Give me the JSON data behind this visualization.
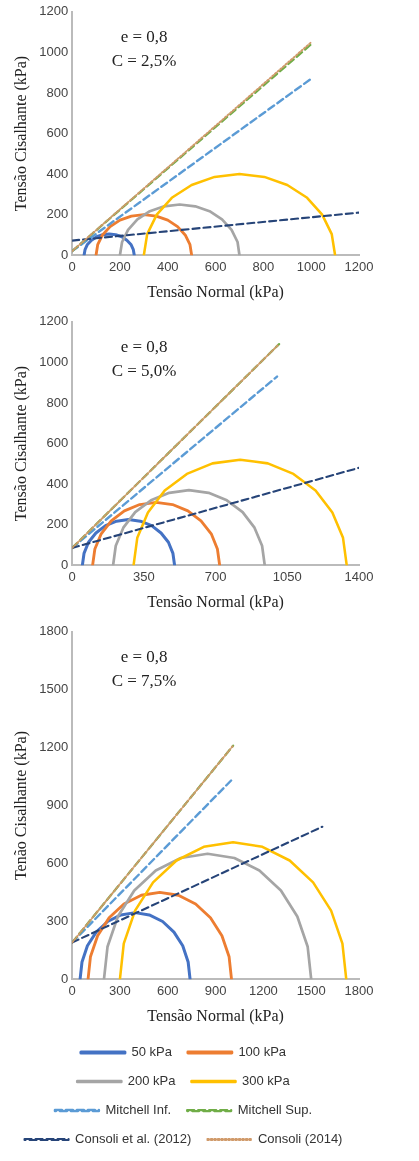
{
  "chart_data": [
    {
      "type": "line",
      "xlabel": "Tensão Normal (kPa)",
      "ylabel": "Tensão Cisalhante (kPa)",
      "annotations": [
        "e = 0,8",
        "C = 2,5%"
      ],
      "xlim": [
        0,
        1200
      ],
      "xticks": [
        0,
        200,
        400,
        600,
        800,
        1000,
        1200
      ],
      "ylim": [
        0,
        1200
      ],
      "yticks": [
        0,
        200,
        400,
        600,
        800,
        1000,
        1200
      ],
      "grid": false,
      "marker": "none",
      "series": [
        {
          "color": "#4472c4",
          "line_style": "solid",
          "x": [
            50,
            54,
            64,
            81,
            103,
            128,
            155,
            182,
            208,
            229,
            246,
            256,
            260
          ],
          "values": [
            0,
            27,
            53,
            74,
            91,
            101,
            105,
            101,
            91,
            74,
            53,
            27,
            0
          ]
        },
        {
          "color": "#ed7d31",
          "line_style": "solid",
          "x": [
            100,
            107,
            127,
            159,
            200,
            248,
            300,
            352,
            400,
            441,
            473,
            493,
            500
          ],
          "values": [
            0,
            52,
            100,
            141,
            173,
            193,
            200,
            193,
            173,
            141,
            100,
            52,
            0
          ]
        },
        {
          "color": "#a5a5a5",
          "line_style": "solid",
          "x": [
            200,
            209,
            234,
            273,
            325,
            385,
            450,
            515,
            575,
            627,
            667,
            692,
            700
          ],
          "values": [
            0,
            65,
            125,
            177,
            217,
            241,
            250,
            241,
            217,
            177,
            125,
            65,
            0
          ]
        },
        {
          "color": "#ffc000",
          "line_style": "solid",
          "x": [
            300,
            314,
            354,
            417,
            500,
            596,
            700,
            804,
            900,
            983,
            1046,
            1086,
            1100
          ],
          "values": [
            0,
            104,
            200,
            283,
            346,
            386,
            400,
            386,
            346,
            283,
            200,
            104,
            0
          ]
        },
        {
          "color": "#5b9bd5",
          "line_style": "dashed",
          "x": [
            0,
            1000
          ],
          "values": [
            20,
            870
          ]
        },
        {
          "color": "#70ad47",
          "line_style": "dashed",
          "x": [
            0,
            1000
          ],
          "values": [
            20,
            1040
          ]
        },
        {
          "color": "#264478",
          "line_style": "dashed",
          "x": [
            0,
            1200
          ],
          "values": [
            72,
            210
          ]
        },
        {
          "color": "#d09a6a",
          "line_style": "dotted",
          "x": [
            0,
            1000
          ],
          "values": [
            20,
            1050
          ]
        }
      ]
    },
    {
      "type": "line",
      "xlabel": "Tensão Normal (kPa)",
      "ylabel": "Tensão Cisalhante (kPa)",
      "annotations": [
        "e = 0,8",
        "C = 5,0%"
      ],
      "xlim": [
        0,
        1400
      ],
      "xticks": [
        0,
        350,
        700,
        1050,
        1400
      ],
      "ylim": [
        0,
        1200
      ],
      "yticks": [
        0,
        200,
        400,
        600,
        800,
        1000,
        1200
      ],
      "grid": false,
      "marker": "none",
      "series": [
        {
          "color": "#4472c4",
          "line_style": "solid",
          "x": [
            50,
            58,
            80,
            116,
            163,
            217,
            275,
            333,
            388,
            434,
            470,
            492,
            500
          ],
          "values": [
            0,
            58,
            113,
            159,
            195,
            217,
            225,
            217,
            195,
            159,
            113,
            58,
            0
          ]
        },
        {
          "color": "#ed7d31",
          "line_style": "solid",
          "x": [
            100,
            111,
            142,
            191,
            255,
            330,
            410,
            490,
            565,
            629,
            679,
            709,
            720
          ],
          "values": [
            0,
            80,
            155,
            219,
            268,
            299,
            310,
            299,
            268,
            219,
            155,
            80,
            0
          ]
        },
        {
          "color": "#a5a5a5",
          "line_style": "solid",
          "x": [
            200,
            213,
            250,
            308,
            385,
            474,
            570,
            666,
            755,
            832,
            890,
            927,
            940
          ],
          "values": [
            0,
            96,
            185,
            262,
            320,
            357,
            370,
            357,
            320,
            262,
            185,
            96,
            0
          ]
        },
        {
          "color": "#ffc000",
          "line_style": "solid",
          "x": [
            300,
            318,
            370,
            452,
            560,
            685,
            820,
            955,
            1080,
            1188,
            1270,
            1322,
            1340
          ],
          "values": [
            0,
            135,
            260,
            368,
            450,
            502,
            520,
            502,
            450,
            368,
            260,
            135,
            0
          ]
        },
        {
          "color": "#5b9bd5",
          "line_style": "dashed",
          "x": [
            0,
            1000
          ],
          "values": [
            85,
            930
          ]
        },
        {
          "color": "#70ad47",
          "line_style": "dashed",
          "x": [
            0,
            1010
          ],
          "values": [
            85,
            1090
          ]
        },
        {
          "color": "#264478",
          "line_style": "dashed",
          "x": [
            0,
            1400
          ],
          "values": [
            85,
            480
          ]
        },
        {
          "color": "#d09a6a",
          "line_style": "dotted",
          "x": [
            0,
            1010
          ],
          "values": [
            85,
            1090
          ]
        }
      ]
    },
    {
      "type": "line",
      "xlabel": "Tensão Normal (kPa)",
      "ylabel": "Tenão Cisalhante (kPa)",
      "annotations": [
        "e = 0,8",
        "C = 7,5%"
      ],
      "xlim": [
        0,
        1800
      ],
      "xticks": [
        0,
        300,
        600,
        900,
        1200,
        1500,
        1800
      ],
      "ylim": [
        0,
        1800
      ],
      "yticks": [
        0,
        300,
        600,
        900,
        1200,
        1500,
        1800
      ],
      "grid": false,
      "marker": "none",
      "legend": "bottom",
      "series": [
        {
          "name": "50 kPa",
          "color": "#4472c4",
          "line_style": "solid",
          "x": [
            50,
            62,
            96,
            151,
            223,
            306,
            395,
            484,
            568,
            639,
            694,
            728,
            740
          ],
          "values": [
            0,
            89,
            173,
            244,
            299,
            333,
            345,
            333,
            299,
            244,
            173,
            89,
            0
          ]
        },
        {
          "name": "100 kPa",
          "color": "#ed7d31",
          "line_style": "solid",
          "x": [
            100,
            115,
            160,
            232,
            325,
            434,
            550,
            667,
            775,
            868,
            940,
            985,
            1000
          ],
          "values": [
            0,
            116,
            225,
            318,
            390,
            435,
            450,
            435,
            390,
            318,
            225,
            116,
            0
          ]
        },
        {
          "name": "200 kPa",
          "color": "#a5a5a5",
          "line_style": "solid",
          "x": [
            200,
            222,
            287,
            390,
            525,
            682,
            850,
            1018,
            1175,
            1310,
            1413,
            1478,
            1500
          ],
          "values": [
            0,
            168,
            325,
            460,
            563,
            628,
            650,
            628,
            563,
            460,
            325,
            168,
            0
          ]
        },
        {
          "name": "300 kPa",
          "color": "#ffc000",
          "line_style": "solid",
          "x": [
            300,
            324,
            395,
            508,
            655,
            826,
            1010,
            1194,
            1365,
            1512,
            1625,
            1696,
            1720
          ],
          "values": [
            0,
            184,
            355,
            502,
            615,
            686,
            710,
            686,
            615,
            502,
            355,
            184,
            0
          ]
        },
        {
          "name": "Mitchell Inf.",
          "color": "#5b9bd5",
          "line_style": "dashed",
          "x": [
            0,
            1010
          ],
          "values": [
            190,
            1040
          ]
        },
        {
          "name": "Mitchell Sup.",
          "color": "#70ad47",
          "line_style": "dashed",
          "x": [
            0,
            1010
          ],
          "values": [
            190,
            1210
          ]
        },
        {
          "name": "Consoli et al. (2012)",
          "color": "#264478",
          "line_style": "dashed",
          "x": [
            0,
            1570
          ],
          "values": [
            190,
            790
          ]
        },
        {
          "name": "Consoli (2014)",
          "color": "#d09a6a",
          "line_style": "dotted",
          "x": [
            0,
            1010
          ],
          "values": [
            190,
            1210
          ]
        }
      ]
    }
  ]
}
